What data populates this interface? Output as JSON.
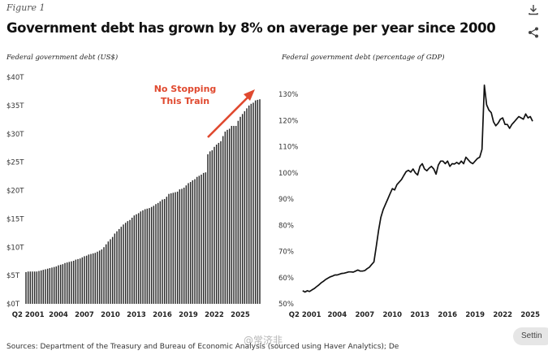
{
  "figure_label": "Figure 1",
  "title": "Government debt has grown by 8% on average per year since 2000",
  "sources": "Sources: Department of the Treasury and Bureau of Economic Analysis (sourced using Haver Analytics); De",
  "settings_label": "Settin",
  "watermark": "@常济非",
  "icons": {
    "download": "download-icon",
    "share": "share-icon"
  },
  "colors": {
    "bars": "#2b2b2b",
    "line": "#111111",
    "annotation": "#e0492f",
    "text": "#111111"
  },
  "chart_data": [
    {
      "type": "bar",
      "title": "Federal government debt (US$)",
      "xlabel": "",
      "ylabel": "",
      "ylim": [
        0,
        40
      ],
      "yticks": [
        "$0T",
        "$5T",
        "$10T",
        "$15T",
        "$20T",
        "$25T",
        "$30T",
        "$35T",
        "$40T"
      ],
      "xticks": [
        "Q2 2001",
        "2004",
        "2007",
        "2010",
        "2013",
        "2016",
        "2019",
        "2022",
        "2025"
      ],
      "x_start": 2000.25,
      "x_step": 0.25,
      "annotation": {
        "line1": "No Stopping",
        "line2": "This Train",
        "arrow": "up-right"
      },
      "values": [
        5.6,
        5.7,
        5.7,
        5.7,
        5.7,
        5.7,
        5.8,
        5.9,
        6.0,
        6.1,
        6.2,
        6.3,
        6.4,
        6.5,
        6.6,
        6.8,
        6.9,
        7.0,
        7.2,
        7.3,
        7.4,
        7.5,
        7.6,
        7.8,
        7.9,
        8.0,
        8.2,
        8.4,
        8.5,
        8.7,
        8.8,
        8.9,
        9.0,
        9.2,
        9.4,
        9.6,
        10.0,
        10.5,
        11.0,
        11.4,
        11.8,
        12.4,
        12.8,
        13.2,
        13.6,
        14.0,
        14.3,
        14.6,
        14.8,
        15.2,
        15.6,
        15.8,
        16.0,
        16.3,
        16.5,
        16.7,
        16.8,
        16.9,
        17.1,
        17.3,
        17.6,
        17.8,
        18.1,
        18.4,
        18.5,
        18.9,
        19.4,
        19.5,
        19.6,
        19.7,
        19.8,
        20.2,
        20.3,
        20.5,
        20.9,
        21.3,
        21.5,
        21.8,
        22.0,
        22.4,
        22.6,
        22.8,
        23.1,
        23.2,
        26.4,
        26.9,
        27.1,
        27.7,
        28.1,
        28.4,
        28.7,
        29.6,
        30.4,
        30.7,
        30.9,
        31.4,
        31.4,
        31.4,
        32.3,
        33.0,
        33.5,
        34.0,
        34.5,
        35.0,
        35.3,
        35.5,
        35.9,
        36.0,
        36.1
      ]
    },
    {
      "type": "line",
      "title": "Federal government debt (percentage of GDP)",
      "xlabel": "",
      "ylabel": "",
      "ylim": [
        50,
        135
      ],
      "xlim": [
        2000.0,
        2025.6
      ],
      "yticks": [
        "50%",
        "60%",
        "70%",
        "80%",
        "90%",
        "100%",
        "110%",
        "120%",
        "130%"
      ],
      "xticks": [
        "Q2 2001",
        "2004",
        "2007",
        "2010",
        "2013",
        "2016",
        "2019",
        "2022",
        "2025"
      ],
      "x": [
        2000.25,
        2000.5,
        2000.75,
        2001.0,
        2001.25,
        2001.5,
        2001.75,
        2002.0,
        2002.25,
        2002.5,
        2002.75,
        2003.0,
        2003.25,
        2003.5,
        2003.75,
        2004.0,
        2004.25,
        2004.5,
        2004.75,
        2005.0,
        2005.25,
        2005.5,
        2005.75,
        2006.0,
        2006.25,
        2006.5,
        2006.75,
        2007.0,
        2007.25,
        2007.5,
        2007.75,
        2008.0,
        2008.25,
        2008.5,
        2008.75,
        2009.0,
        2009.25,
        2009.5,
        2009.75,
        2010.0,
        2010.25,
        2010.5,
        2010.75,
        2011.0,
        2011.25,
        2011.5,
        2011.75,
        2012.0,
        2012.25,
        2012.5,
        2012.75,
        2013.0,
        2013.25,
        2013.5,
        2013.75,
        2014.0,
        2014.25,
        2014.5,
        2014.75,
        2015.0,
        2015.25,
        2015.5,
        2015.75,
        2016.0,
        2016.25,
        2016.5,
        2016.75,
        2017.0,
        2017.25,
        2017.5,
        2017.75,
        2018.0,
        2018.25,
        2018.5,
        2018.75,
        2019.0,
        2019.25,
        2019.5,
        2019.75,
        2020.0,
        2020.25,
        2020.5,
        2020.75,
        2021.0,
        2021.25,
        2021.5,
        2021.75,
        2022.0,
        2022.25,
        2022.5,
        2022.75,
        2023.0,
        2023.25,
        2023.5,
        2023.75,
        2024.0,
        2024.25,
        2024.5,
        2024.75,
        2025.0,
        2025.25
      ],
      "values": [
        55,
        54.5,
        55,
        54.7,
        55.3,
        55.8,
        56.5,
        57.2,
        58,
        58.6,
        59.3,
        59.8,
        60.3,
        60.6,
        61,
        61,
        61.3,
        61.6,
        61.7,
        61.9,
        62.2,
        62.2,
        62.1,
        62.5,
        62.9,
        62.5,
        62.5,
        62.7,
        63.4,
        64,
        65,
        66,
        72,
        78,
        83,
        86,
        88,
        90,
        92,
        94,
        93.5,
        95.5,
        96.5,
        97.5,
        99,
        100.5,
        101,
        100.3,
        101.5,
        100,
        99.2,
        102.5,
        103.5,
        101.5,
        100.8,
        101.8,
        102.5,
        101.5,
        99.5,
        103,
        104.5,
        104.5,
        103.5,
        104.5,
        102.5,
        103.5,
        103.4,
        104,
        103.4,
        104.5,
        103.5,
        106,
        105,
        104,
        103.5,
        104.5,
        105.5,
        106,
        109,
        133.5,
        126,
        124,
        123,
        119.5,
        118,
        119,
        120.5,
        121,
        118.5,
        118.5,
        117,
        118.5,
        119.5,
        120.5,
        121.5,
        121,
        120.5,
        122.5,
        121,
        121.5,
        119.7
      ]
    }
  ]
}
